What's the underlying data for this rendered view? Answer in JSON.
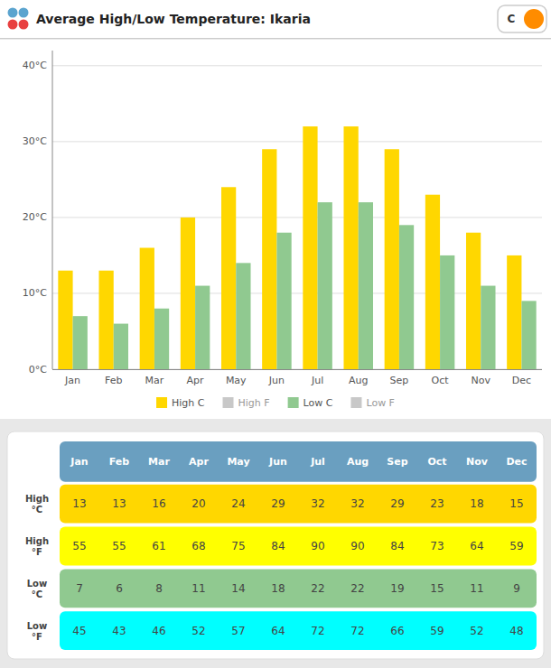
{
  "chart_data": [
    {
      "type": "bar",
      "title": "Average High/Low Temperature: Ikaria",
      "annotations": [
        "C"
      ],
      "categories": [
        "Jan",
        "Feb",
        "Mar",
        "Apr",
        "May",
        "Jun",
        "Jul",
        "Aug",
        "Sep",
        "Oct",
        "Nov",
        "Dec"
      ],
      "series": [
        {
          "name": "High C",
          "color": "#FFD700",
          "values": [
            13,
            13,
            16,
            20,
            24,
            29,
            32,
            32,
            29,
            23,
            18,
            15
          ]
        },
        {
          "name": "High F",
          "color": "#C8C8C8"
        },
        {
          "name": "Low C",
          "color": "#90C990",
          "values": [
            7,
            6,
            8,
            11,
            14,
            18,
            22,
            22,
            19,
            15,
            11,
            9
          ]
        },
        {
          "name": "Low F",
          "color": "#C8C8C8"
        }
      ],
      "ylim": [
        0,
        42
      ],
      "yticks": [
        {
          "value": 0,
          "label": "0°C"
        },
        {
          "value": 10,
          "label": "10°C"
        },
        {
          "value": 20,
          "label": "20°C"
        },
        {
          "value": 30,
          "label": "30°C"
        },
        {
          "value": 40,
          "label": "40°C"
        }
      ],
      "grid": true
    },
    {
      "type": "table",
      "columns": [
        "Jan",
        "Feb",
        "Mar",
        "Apr",
        "May",
        "Jun",
        "Jul",
        "Aug",
        "Sep",
        "Oct",
        "Nov",
        "Dec"
      ],
      "header_color": "#6A9FC0",
      "rows": [
        {
          "label": "High\n°C",
          "color": "#FFD700",
          "values": [
            13,
            13,
            16,
            20,
            24,
            29,
            32,
            32,
            29,
            23,
            18,
            15
          ]
        },
        {
          "label": "High\n°F",
          "color": "#FFFF00",
          "values": [
            55,
            55,
            61,
            68,
            75,
            84,
            90,
            90,
            84,
            73,
            64,
            59
          ]
        },
        {
          "label": "Low\n°C",
          "color": "#90C990",
          "values": [
            7,
            6,
            8,
            11,
            14,
            18,
            22,
            22,
            19,
            15,
            11,
            9
          ]
        },
        {
          "label": "Low\n°F",
          "color": "#00FFFF",
          "values": [
            45,
            43,
            46,
            52,
            57,
            64,
            72,
            72,
            66,
            59,
            52,
            48
          ]
        }
      ]
    }
  ]
}
